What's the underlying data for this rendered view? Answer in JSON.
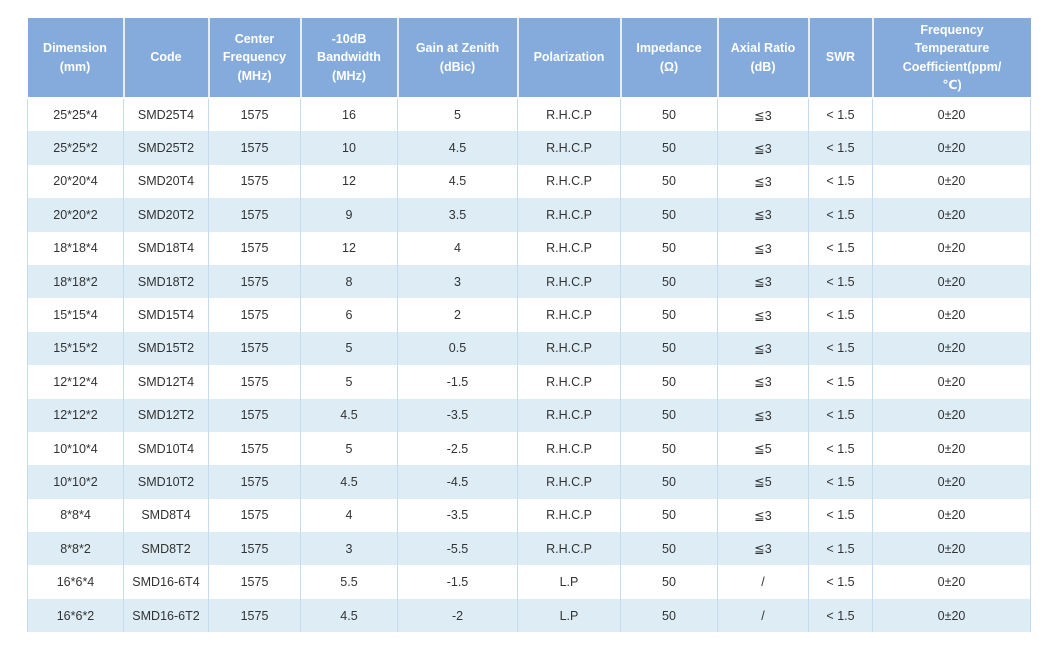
{
  "colors": {
    "header-bg": "#84abdb",
    "header-text": "#ffffff",
    "header-divider": "#e7eef8",
    "row-alt-bg": "#ddecf5",
    "body-text": "#333333",
    "grid-line": "#c6dcee",
    "page-bg": "#ffffff"
  },
  "table": {
    "columns": [
      "Dimension\n(mm)",
      "Code",
      "Center\nFrequency\n(MHz)",
      "-10dB\nBandwidth\n(MHz)",
      "Gain at Zenith\n(dBic)",
      "Polarization",
      "Impedance\n(Ω)",
      "Axial Ratio\n(dB)",
      "SWR",
      "Frequency\nTemperature\nCoefficient(ppm/\n℃)"
    ],
    "rows": [
      {
        "cells": [
          "25*25*4",
          "SMD25T4",
          "1575",
          "16",
          "5",
          "R.H.C.P",
          "50",
          "≦3",
          "< 1.5",
          "0±20"
        ]
      },
      {
        "cells": [
          "25*25*2",
          "SMD25T2",
          "1575",
          "10",
          "4.5",
          "R.H.C.P",
          "50",
          "≦3",
          "< 1.5",
          "0±20"
        ]
      },
      {
        "cells": [
          "20*20*4",
          "SMD20T4",
          "1575",
          "12",
          "4.5",
          "R.H.C.P",
          "50",
          "≦3",
          "< 1.5",
          "0±20"
        ]
      },
      {
        "cells": [
          "20*20*2",
          "SMD20T2",
          "1575",
          "9",
          "3.5",
          "R.H.C.P",
          "50",
          "≦3",
          "< 1.5",
          "0±20"
        ]
      },
      {
        "cells": [
          "18*18*4",
          "SMD18T4",
          "1575",
          "12",
          "4",
          "R.H.C.P",
          "50",
          "≦3",
          "< 1.5",
          "0±20"
        ]
      },
      {
        "cells": [
          "18*18*2",
          "SMD18T2",
          "1575",
          "8",
          "3",
          "R.H.C.P",
          "50",
          "≦3",
          "< 1.5",
          "0±20"
        ]
      },
      {
        "cells": [
          "15*15*4",
          "SMD15T4",
          "1575",
          "6",
          "2",
          "R.H.C.P",
          "50",
          "≦3",
          "< 1.5",
          "0±20"
        ]
      },
      {
        "cells": [
          "15*15*2",
          "SMD15T2",
          "1575",
          "5",
          "0.5",
          "R.H.C.P",
          "50",
          "≦3",
          "< 1.5",
          "0±20"
        ]
      },
      {
        "cells": [
          "12*12*4",
          "SMD12T4",
          "1575",
          "5",
          "-1.5",
          "R.H.C.P",
          "50",
          "≦3",
          "< 1.5",
          "0±20"
        ]
      },
      {
        "cells": [
          "12*12*2",
          "SMD12T2",
          "1575",
          "4.5",
          "-3.5",
          "R.H.C.P",
          "50",
          "≦3",
          "< 1.5",
          "0±20"
        ]
      },
      {
        "cells": [
          "10*10*4",
          "SMD10T4",
          "1575",
          "5",
          "-2.5",
          "R.H.C.P",
          "50",
          "≦5",
          "< 1.5",
          "0±20"
        ]
      },
      {
        "cells": [
          "10*10*2",
          "SMD10T2",
          "1575",
          "4.5",
          "-4.5",
          "R.H.C.P",
          "50",
          "≦5",
          "< 1.5",
          "0±20"
        ]
      },
      {
        "cells": [
          "8*8*4",
          "SMD8T4",
          "1575",
          "4",
          "-3.5",
          "R.H.C.P",
          "50",
          "≦3",
          "< 1.5",
          "0±20"
        ]
      },
      {
        "cells": [
          "8*8*2",
          "SMD8T2",
          "1575",
          "3",
          "-5.5",
          "R.H.C.P",
          "50",
          "≦3",
          "< 1.5",
          "0±20"
        ]
      },
      {
        "cells": [
          "16*6*4",
          "SMD16-6T4",
          "1575",
          "5.5",
          "-1.5",
          "L.P",
          "50",
          "/",
          "< 1.5",
          "0±20"
        ]
      },
      {
        "cells": [
          "16*6*2",
          "SMD16-6T2",
          "1575",
          "4.5",
          "-2",
          "L.P",
          "50",
          "/",
          "< 1.5",
          "0±20"
        ]
      }
    ]
  }
}
